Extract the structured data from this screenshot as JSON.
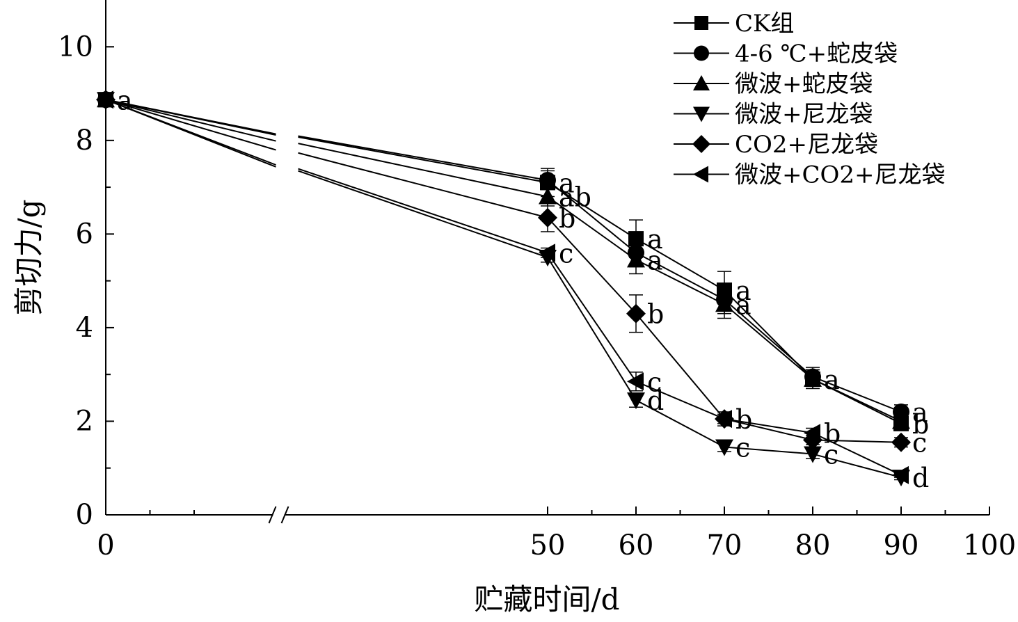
{
  "chart_data": {
    "type": "line",
    "xlabel": "贮藏时间/d",
    "ylabel": "剪切力/g",
    "xlim": [
      0,
      100
    ],
    "ylim": [
      0,
      11
    ],
    "axis_break": [
      15,
      45
    ],
    "x_ticks": [
      0,
      50,
      60,
      70,
      80,
      90,
      100
    ],
    "y_ticks": [
      0,
      2,
      4,
      6,
      8,
      10
    ],
    "grid": false,
    "legend_position": "top-right",
    "x": [
      0,
      50,
      60,
      70,
      80,
      90
    ],
    "series": [
      {
        "name": "CK组",
        "marker": "square",
        "values": [
          8.87,
          7.1,
          5.9,
          4.8,
          2.9,
          1.95
        ],
        "errors": [
          0,
          0.3,
          0.4,
          0.4,
          0.2,
          0.15
        ],
        "labels": [
          "a",
          "a",
          "a",
          "a",
          "a",
          "b"
        ]
      },
      {
        "name": "4-6 ℃+蛇皮袋",
        "marker": "circle",
        "values": [
          8.87,
          7.15,
          5.6,
          4.6,
          2.95,
          2.2
        ],
        "errors": [
          0,
          0.2,
          0.3,
          0.3,
          0.2,
          0.15
        ],
        "labels": [
          "",
          "",
          "",
          "",
          "",
          "a"
        ]
      },
      {
        "name": "微波+蛇皮袋",
        "marker": "triangle-up",
        "values": [
          8.87,
          6.8,
          5.45,
          4.5,
          2.9,
          2.0
        ],
        "errors": [
          0,
          0.2,
          0.3,
          0.3,
          0.2,
          0.1
        ],
        "labels": [
          "",
          "ab",
          "a",
          "a",
          "",
          ""
        ]
      },
      {
        "name": "微波+尼龙袋",
        "marker": "triangle-down",
        "values": [
          8.87,
          5.5,
          2.45,
          1.45,
          1.3,
          0.8
        ],
        "errors": [
          0,
          0.1,
          0.15,
          0.1,
          0.1,
          0.05
        ],
        "labels": [
          "",
          "",
          "d",
          "c",
          "c",
          "d"
        ]
      },
      {
        "name": "CO2+尼龙袋",
        "marker": "diamond",
        "values": [
          8.87,
          6.35,
          4.3,
          2.05,
          1.6,
          1.55
        ],
        "errors": [
          0,
          0.3,
          0.4,
          0.15,
          0.1,
          0.1
        ],
        "labels": [
          "",
          "b",
          "b",
          "b",
          "",
          "c"
        ]
      },
      {
        "name": "微波+CO2+尼龙袋",
        "marker": "triangle-left",
        "values": [
          8.87,
          5.6,
          2.85,
          2.05,
          1.75,
          0.85
        ],
        "errors": [
          0,
          0.1,
          0.2,
          0.1,
          0.1,
          0.05
        ],
        "labels": [
          "",
          "c",
          "c",
          "",
          "b",
          ""
        ]
      }
    ]
  }
}
